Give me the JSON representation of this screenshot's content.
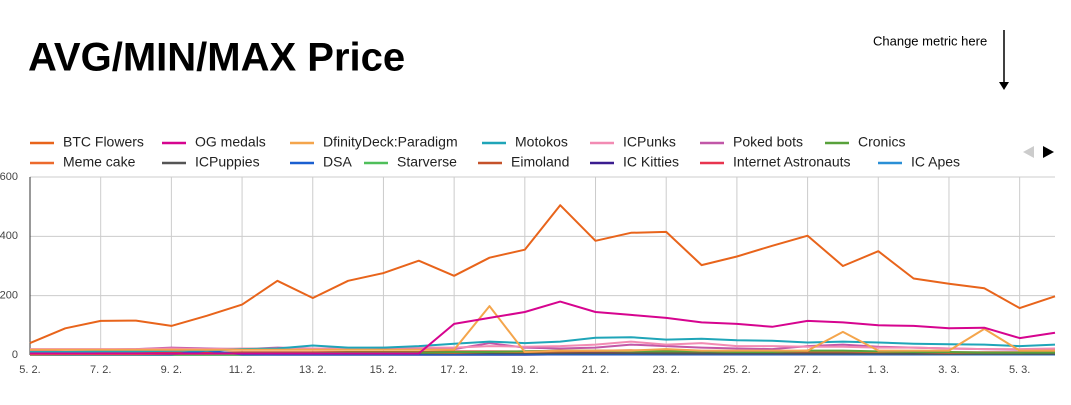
{
  "chart_data": {
    "type": "line",
    "title": "AVG/MIN/MAX Price",
    "annotation": "Change metric here",
    "categories": [
      "5. 2.",
      null,
      "7. 2.",
      null,
      "9. 2.",
      null,
      "11. 2.",
      null,
      "13. 2.",
      null,
      "15. 2.",
      null,
      "17. 2.",
      null,
      "19. 2.",
      null,
      "21. 2.",
      null,
      "23. 2.",
      null,
      "25. 2.",
      null,
      "27. 2.",
      null,
      "1. 3.",
      null,
      "3. 3.",
      null,
      "5. 3.",
      null
    ],
    "ylim": [
      0,
      600
    ],
    "yticks": [
      0,
      200,
      400,
      600
    ],
    "grid": true,
    "series": [
      {
        "name": "BTC Flowers",
        "color": "#e8641b",
        "values": [
          40,
          90,
          115,
          116,
          98,
          132,
          170,
          250,
          192,
          250,
          276,
          318,
          267,
          328,
          355,
          505,
          385,
          412,
          415,
          303,
          332,
          368,
          402,
          300,
          350,
          258,
          240,
          225,
          158,
          198
        ]
      },
      {
        "name": "OG medals",
        "color": "#d6048f",
        "values": [
          5,
          5,
          5,
          5,
          5,
          5,
          5,
          5,
          5,
          5,
          5,
          5,
          105,
          125,
          145,
          180,
          145,
          135,
          125,
          110,
          105,
          95,
          115,
          110,
          100,
          98,
          90,
          92,
          57,
          75
        ]
      },
      {
        "name": "DfinityDeck:Paradigm",
        "color": "#f4a54c",
        "values": [
          18,
          18,
          18,
          18,
          18,
          18,
          18,
          18,
          18,
          18,
          18,
          18,
          18,
          165,
          10,
          15,
          15,
          15,
          20,
          15,
          15,
          15,
          15,
          78,
          15,
          15,
          15,
          88,
          15,
          15
        ]
      },
      {
        "name": "Motokos",
        "color": "#1fa5b8",
        "values": [
          10,
          10,
          12,
          12,
          14,
          15,
          20,
          22,
          32,
          25,
          25,
          30,
          38,
          45,
          40,
          45,
          58,
          60,
          52,
          55,
          50,
          48,
          42,
          45,
          42,
          38,
          36,
          35,
          30,
          35
        ]
      },
      {
        "name": "ICPunks",
        "color": "#f28bb3",
        "values": [
          20,
          20,
          20,
          20,
          22,
          20,
          22,
          22,
          22,
          22,
          25,
          25,
          25,
          30,
          28,
          30,
          35,
          45,
          35,
          40,
          30,
          30,
          28,
          28,
          25,
          25,
          22,
          20,
          20,
          22
        ]
      },
      {
        "name": "Poked bots",
        "color": "#c157a8",
        "values": [
          15,
          18,
          18,
          20,
          25,
          22,
          20,
          25,
          22,
          20,
          22,
          22,
          20,
          40,
          25,
          22,
          25,
          35,
          30,
          25,
          22,
          20,
          30,
          35,
          28,
          25,
          22,
          20,
          18,
          20
        ]
      },
      {
        "name": "Cronics",
        "color": "#58a13b",
        "values": [
          5,
          5,
          5,
          5,
          5,
          5,
          6,
          6,
          6,
          8,
          8,
          8,
          10,
          10,
          12,
          15,
          15,
          12,
          12,
          12,
          10,
          10,
          15,
          15,
          12,
          10,
          10,
          8,
          8,
          8
        ]
      },
      {
        "name": "Meme cake",
        "color": "#ec6a2d",
        "values": [
          2,
          3,
          3,
          3,
          4,
          4,
          5,
          5,
          5,
          6,
          6,
          8,
          8,
          10,
          10,
          12,
          14,
          16,
          14,
          12,
          10,
          10,
          12,
          12,
          10,
          10,
          8,
          8,
          8,
          10
        ]
      },
      {
        "name": "ICPuppies",
        "color": "#555555",
        "values": [
          3,
          3,
          4,
          4,
          4,
          5,
          5,
          5,
          5,
          5,
          5,
          6,
          6,
          6,
          6,
          6,
          6,
          6,
          5,
          5,
          5,
          5,
          5,
          5,
          5,
          4,
          4,
          4,
          4,
          4
        ]
      },
      {
        "name": "DSA",
        "color": "#1a5fd0",
        "values": [
          2,
          2,
          2,
          2,
          2,
          15,
          2,
          2,
          2,
          2,
          2,
          2,
          2,
          2,
          2,
          2,
          2,
          2,
          2,
          2,
          2,
          2,
          2,
          2,
          2,
          2,
          2,
          2,
          2,
          2
        ]
      },
      {
        "name": "Starverse",
        "color": "#4fbf5a",
        "values": [
          1,
          1,
          1,
          1,
          1,
          1,
          1,
          2,
          2,
          2,
          2,
          3,
          3,
          3,
          4,
          4,
          4,
          5,
          5,
          4,
          4,
          4,
          3,
          3,
          3,
          3,
          2,
          2,
          2,
          2
        ]
      },
      {
        "name": "Eimoland",
        "color": "#c5522a",
        "values": [
          8,
          8,
          8,
          8,
          8,
          8,
          9,
          9,
          9,
          10,
          10,
          10,
          12,
          12,
          12,
          14,
          14,
          14,
          12,
          12,
          12,
          10,
          10,
          10,
          10,
          9,
          9,
          9,
          9,
          9
        ]
      },
      {
        "name": "IC Kitties",
        "color": "#3a1c8f",
        "values": [
          1,
          1,
          1,
          1,
          1,
          1,
          1,
          1,
          1,
          1,
          1,
          1,
          1,
          1,
          1,
          2,
          2,
          2,
          2,
          2,
          2,
          2,
          2,
          2,
          2,
          2,
          2,
          2,
          2,
          2
        ]
      },
      {
        "name": "Internet Astronauts",
        "color": "#e8344e",
        "values": [
          4,
          4,
          4,
          4,
          5,
          5,
          5,
          5,
          5,
          6,
          6,
          6,
          6,
          7,
          7,
          7,
          8,
          8,
          8,
          7,
          7,
          7,
          6,
          6,
          6,
          6,
          5,
          5,
          5,
          5
        ]
      },
      {
        "name": "IC Apes",
        "color": "#2a8fd6",
        "values": [
          2,
          2,
          2,
          2,
          2,
          2,
          2,
          2,
          3,
          3,
          3,
          3,
          3,
          3,
          4,
          4,
          4,
          4,
          4,
          4,
          4,
          4,
          4,
          4,
          4,
          3,
          3,
          3,
          3,
          3
        ]
      }
    ]
  }
}
